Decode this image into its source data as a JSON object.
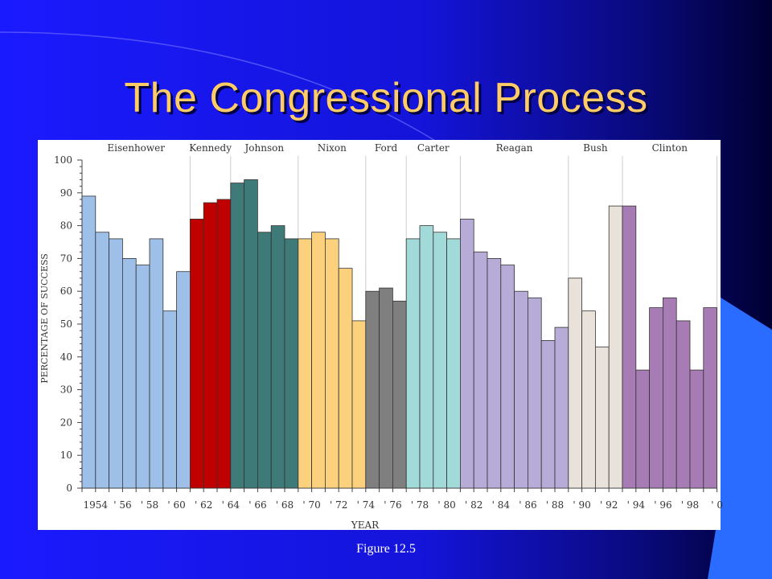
{
  "slide": {
    "title": "The Congressional Process",
    "caption": "Figure 12.5"
  },
  "colors": {
    "background": "#1414d9",
    "title": "#ffcc66",
    "panel": "#ffffff"
  },
  "chart_data": {
    "type": "bar",
    "title": "",
    "xlabel": "YEAR",
    "ylabel": "PERCENTAGE OF SUCCESS",
    "ylim": [
      0,
      100
    ],
    "yticks": [
      0,
      10,
      20,
      30,
      40,
      50,
      60,
      70,
      80,
      90,
      100
    ],
    "grid": false,
    "x_tick_labels": [
      "1954",
      "' 56",
      "' 58",
      "' 60",
      "' 62",
      "' 64",
      "' 66",
      "' 68",
      "' 70",
      "' 72",
      "' 74",
      "' 76",
      "' 78",
      "' 80",
      "' 82",
      "' 84",
      "' 86",
      "' 88",
      "' 90",
      "' 92",
      "' 94",
      "' 96",
      "' 98",
      "' 0"
    ],
    "x_tick_start_year": 1954,
    "x_tick_step": 2,
    "years": [
      1953,
      1954,
      1955,
      1956,
      1957,
      1958,
      1959,
      1960,
      1961,
      1962,
      1963,
      1964,
      1965,
      1966,
      1967,
      1968,
      1969,
      1970,
      1971,
      1972,
      1973,
      1974,
      1975,
      1976,
      1977,
      1978,
      1979,
      1980,
      1981,
      1982,
      1983,
      1984,
      1985,
      1986,
      1987,
      1988,
      1989,
      1990,
      1991,
      1992,
      1993,
      1994,
      1995,
      1996,
      1997,
      1998,
      1999
    ],
    "values": [
      89,
      78,
      76,
      70,
      68,
      76,
      54,
      66,
      82,
      87,
      88,
      93,
      94,
      78,
      80,
      76,
      76,
      78,
      76,
      67,
      51,
      60,
      61,
      57,
      76,
      80,
      78,
      76,
      82,
      72,
      70,
      68,
      60,
      58,
      45,
      49,
      64,
      54,
      43,
      86,
      86,
      36,
      55,
      58,
      51,
      36,
      55
    ],
    "presidents": [
      {
        "name": "Eisenhower",
        "bars": 8,
        "color": "#9dbfe8"
      },
      {
        "name": "Kennedy",
        "bars": 3,
        "color": "#c00000"
      },
      {
        "name": "Johnson",
        "bars": 5,
        "color": "#3d7a78"
      },
      {
        "name": "Nixon",
        "bars": 5,
        "color": "#fcd17e"
      },
      {
        "name": "Ford",
        "bars": 3,
        "color": "#7f7f7f"
      },
      {
        "name": "Carter",
        "bars": 4,
        "color": "#a2d9d9"
      },
      {
        "name": "Reagan",
        "bars": 8,
        "color": "#b7acd8"
      },
      {
        "name": "Bush",
        "bars": 4,
        "color": "#e8e2da"
      },
      {
        "name": "Clinton",
        "bars": 7,
        "color": "#a77bb4"
      }
    ]
  }
}
